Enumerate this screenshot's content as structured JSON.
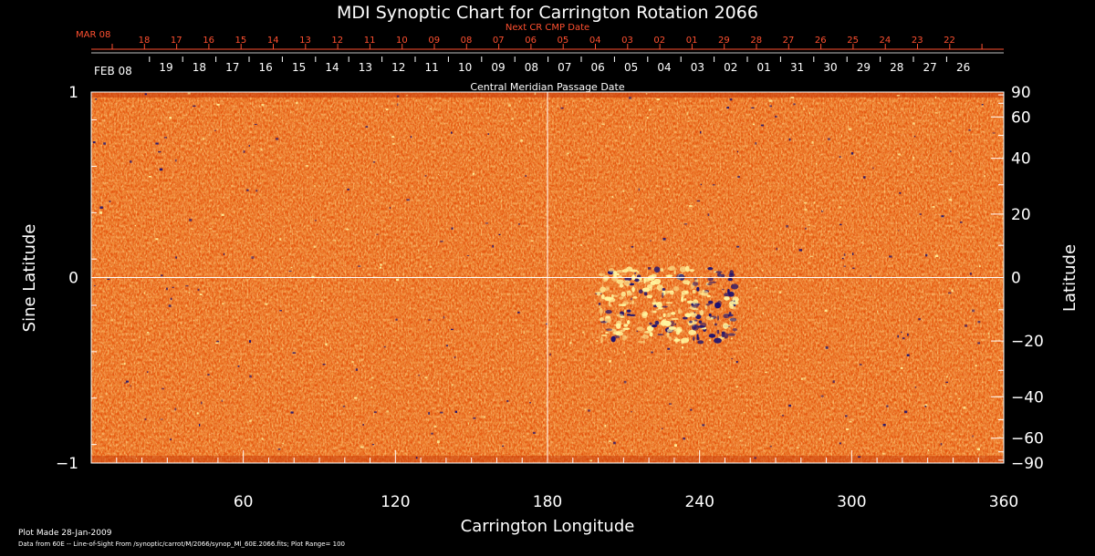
{
  "chart_data": {
    "type": "heatmap",
    "title": "MDI Synoptic Chart for Carrington Rotation 2066",
    "xlabel": "Carrington Longitude",
    "ylabel_left": "Sine Latitude",
    "ylabel_right": "Latitude",
    "xlim": [
      0,
      360
    ],
    "ylim": [
      -1,
      1
    ],
    "x_ticks": [
      "60",
      "120",
      "180",
      "240",
      "300",
      "360"
    ],
    "left_y_ticks": [
      "1",
      "0",
      "−1"
    ],
    "right_y_ticks": [
      "90",
      "60",
      "40",
      "20",
      "0",
      "−20",
      "−40",
      "−60",
      "−90"
    ],
    "right_y_tick_values": [
      90,
      60,
      40,
      20,
      0,
      -20,
      -40,
      -60,
      -90
    ],
    "next_cmp": {
      "label": "Next CR CMP Date",
      "month_label": "MAR 08",
      "days": [
        "18",
        "17",
        "16",
        "15",
        "14",
        "13",
        "12",
        "11",
        "10",
        "09",
        "08",
        "07",
        "06",
        "05",
        "04",
        "03",
        "02",
        "01",
        "29",
        "28",
        "27",
        "26",
        "25",
        "24",
        "23",
        "22"
      ]
    },
    "cmp": {
      "label": "Central Meridian Passage Date",
      "month_label": "FEB 08",
      "days": [
        "19",
        "18",
        "17",
        "16",
        "15",
        "14",
        "13",
        "12",
        "11",
        "10",
        "09",
        "08",
        "07",
        "06",
        "05",
        "04",
        "03",
        "02",
        "01",
        "31",
        "30",
        "29",
        "28",
        "27",
        "26"
      ]
    },
    "crosshair": {
      "longitude": 180,
      "sine_latitude": 0
    },
    "active_region": {
      "longitude_range": [
        200,
        255
      ],
      "sine_latitude_range": [
        -0.35,
        0.05
      ]
    },
    "colors": {
      "background_field": "#e85a10",
      "positive": "#fff6a0",
      "negative": "#1a1070",
      "grid": "#ffffff",
      "date_axis": "#ff5030"
    }
  },
  "footer": {
    "plot_made": "Plot Made 28-Jan-2009",
    "data_from": "Data from 60E -- Line-of-Sight From /synoptic/carrot/M/2066/synop_Ml_60E.2066.fits; Plot Range= 100"
  }
}
